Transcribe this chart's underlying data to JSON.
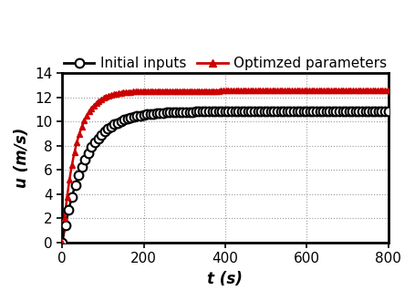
{
  "title": "",
  "xlabel": "t (s)",
  "ylabel": "u (m/s)",
  "xlim": [
    0,
    800
  ],
  "ylim": [
    0,
    14
  ],
  "xticks": [
    0,
    200,
    400,
    600,
    800
  ],
  "yticks": [
    0,
    2,
    4,
    6,
    8,
    10,
    12,
    14
  ],
  "initial_color": "#000000",
  "optimized_color": "#cc0000",
  "initial_label": "Initial inputs",
  "optimized_label": "Optimzed parameters",
  "initial_asymptote": 10.85,
  "initial_rate": 0.018,
  "optimized_asymptote": 12.55,
  "optimized_rate": 0.03,
  "t_max": 800,
  "n_points": 800,
  "marker_interval_initial": 8,
  "marker_interval_optimized": 6,
  "background_color": "#ffffff",
  "grid_color": "#999999",
  "marker_size_initial": 7,
  "marker_size_optimized": 5
}
